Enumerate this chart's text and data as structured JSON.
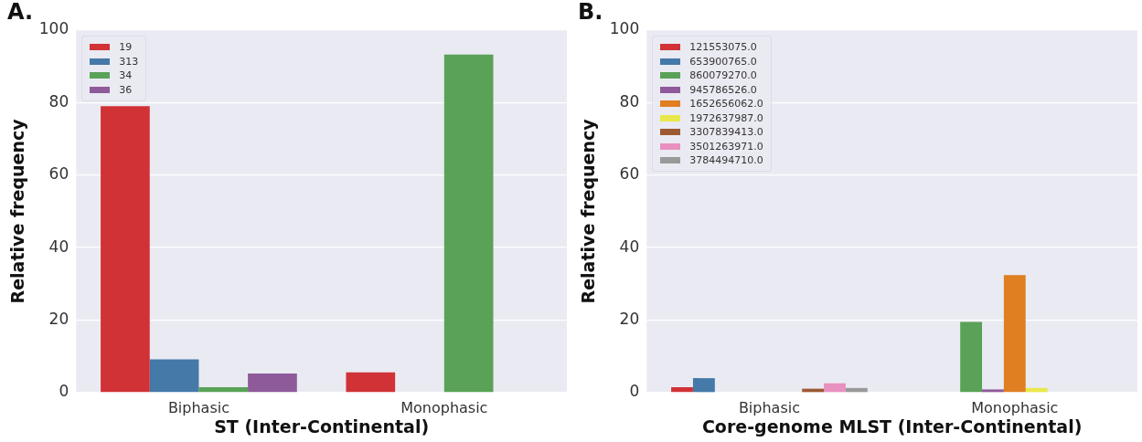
{
  "chart_data": [
    {
      "type": "bar",
      "title": "A.",
      "xlabel": "ST (Inter-Continental)",
      "ylabel": "Relative frequency",
      "categories": [
        "Biphasic",
        "Monophasic"
      ],
      "ylim": [
        0,
        100
      ],
      "yticks": [
        0,
        20,
        40,
        60,
        80,
        100
      ],
      "grid": "y",
      "legend": "top left",
      "series": [
        {
          "name": "19",
          "color": "#d03236",
          "values": [
            79,
            5.6
          ]
        },
        {
          "name": "313",
          "color": "#4479a8",
          "values": [
            9.2,
            null
          ]
        },
        {
          "name": "34",
          "color": "#59a257",
          "values": [
            1.5,
            93.2
          ]
        },
        {
          "name": "36",
          "color": "#8f5a9a",
          "values": [
            5.3,
            null
          ]
        }
      ]
    },
    {
      "type": "bar",
      "title": "B.",
      "xlabel": "Core-genome MLST (Inter-Continental)",
      "ylabel": "Relative frequency",
      "categories": [
        "Biphasic",
        "Monophasic"
      ],
      "ylim": [
        0,
        100
      ],
      "yticks": [
        0,
        20,
        40,
        60,
        80,
        100
      ],
      "grid": "y",
      "legend": "top left",
      "series": [
        {
          "name": "121553075.0",
          "color": "#d03236",
          "values": [
            1.5,
            null
          ]
        },
        {
          "name": "653900765.0",
          "color": "#4479a8",
          "values": [
            4.0,
            null
          ]
        },
        {
          "name": "860079270.0",
          "color": "#59a257",
          "values": [
            null,
            19.5
          ]
        },
        {
          "name": "945786526.0",
          "color": "#8f5a9a",
          "values": [
            null,
            0.9
          ]
        },
        {
          "name": "1652656062.0",
          "color": "#e07e22",
          "values": [
            null,
            32.4
          ]
        },
        {
          "name": "1972637987.0",
          "color": "#e8e84a",
          "values": [
            null,
            1.3
          ]
        },
        {
          "name": "3307839413.0",
          "color": "#9c5a34",
          "values": [
            1.1,
            null
          ]
        },
        {
          "name": "3501263971.0",
          "color": "#e890c0",
          "values": [
            2.6,
            null
          ]
        },
        {
          "name": "3784494710.0",
          "color": "#999999",
          "values": [
            1.3,
            null
          ]
        }
      ]
    }
  ]
}
